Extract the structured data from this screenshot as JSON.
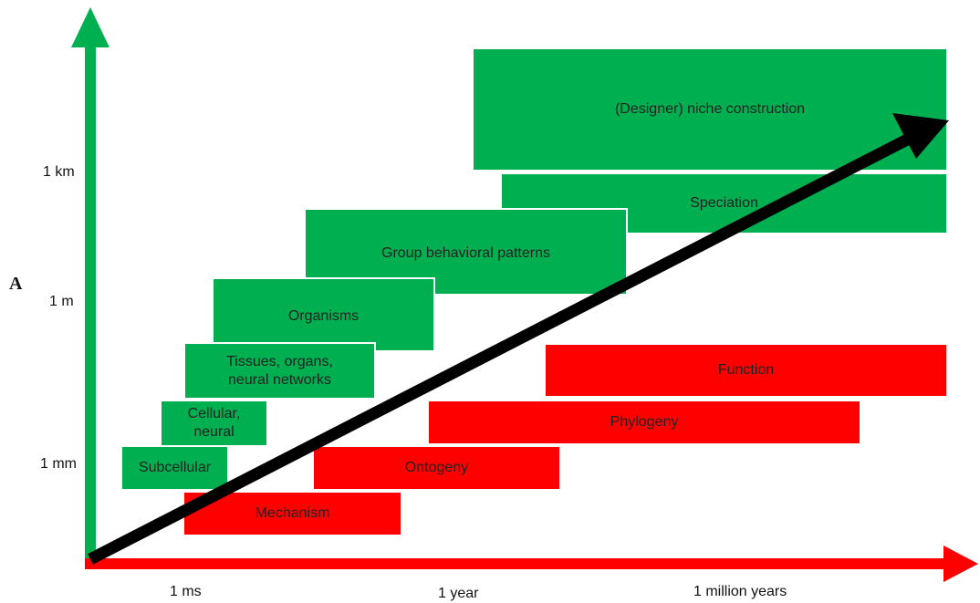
{
  "panel_label": "A",
  "y_axis": {
    "ticks": [
      "1 km",
      "1 m",
      "1 mm"
    ],
    "color": "#00b050"
  },
  "x_axis": {
    "ticks": [
      "1 ms",
      "1 year",
      "1 million years"
    ],
    "color": "#ff0000"
  },
  "scale_boxes": {
    "niche": "(Designer) niche construction",
    "speciation": "Speciation",
    "group": "Group behavioral patterns",
    "organisms": "Organisms",
    "tissues": "Tissues, organs,\nneural networks",
    "cellular": "Cellular,\nneural",
    "subcellular": "Subcellular"
  },
  "question_boxes": {
    "function": "Function",
    "phylogeny": "Phylogeny",
    "ontogeny": "Ontogeny",
    "mechanism": "Mechanism"
  },
  "colors": {
    "green": "#00b050",
    "red": "#ff0000",
    "arrow": "#000000"
  }
}
